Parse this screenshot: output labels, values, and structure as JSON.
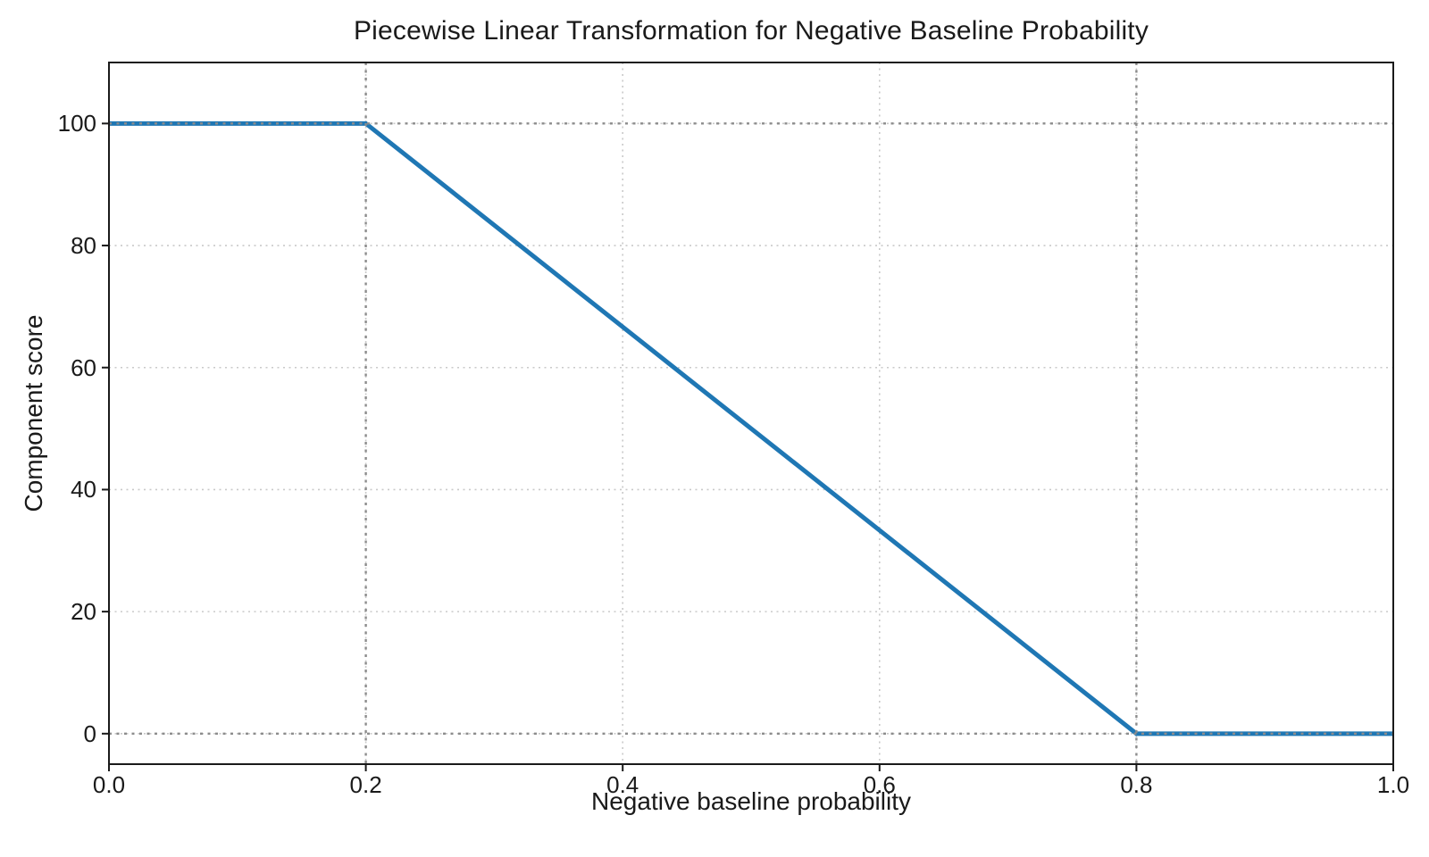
{
  "chart_data": {
    "type": "line",
    "title": "Piecewise Linear Transformation for Negative Baseline Probability",
    "xlabel": "Negative baseline probability",
    "ylabel": "Component score",
    "xlim": [
      0.0,
      1.0
    ],
    "ylim": [
      -5,
      110
    ],
    "x_tick_values": [
      0.0,
      0.2,
      0.4,
      0.6,
      0.8,
      1.0
    ],
    "x_tick_labels": [
      "0.0",
      "0.2",
      "0.4",
      "0.6",
      "0.8",
      "1.0"
    ],
    "y_tick_values": [
      0,
      20,
      40,
      60,
      80,
      100
    ],
    "y_tick_labels": [
      "0",
      "20",
      "40",
      "60",
      "80",
      "100"
    ],
    "grid": "dotted",
    "legend": "none",
    "series": [
      {
        "name": "piecewise-transformation",
        "color": "#1f77b4",
        "linewidth": 5,
        "points": [
          [
            0.0,
            100
          ],
          [
            0.2,
            100
          ],
          [
            0.8,
            0
          ],
          [
            1.0,
            0
          ]
        ]
      }
    ],
    "reference_lines": {
      "vertical_x": [
        0.2,
        0.8
      ],
      "horizontal_y": [
        100,
        0
      ],
      "style": "dotted"
    },
    "colors": {
      "line": "#1f77b4",
      "grid": "#c9c9c9",
      "reference": "#8c8c8c",
      "axis": "#1a1a1a",
      "background": "#ffffff"
    }
  }
}
